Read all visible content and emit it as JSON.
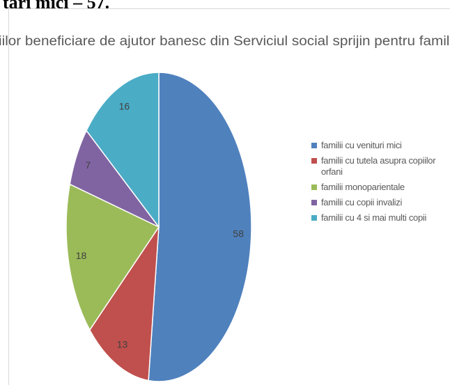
{
  "heading": "tari mici – 57.",
  "chart_data": {
    "type": "pie",
    "title": "iilor beneficiare de ajutor banesc din Serviciul social sprijin pentru famili",
    "categories": [
      "familii cu venituri mici",
      "familii cu tutela asupra copiilor orfani",
      "familii monoparientale",
      "familii cu copii invalizi",
      "familii cu 4 si mai multi copii"
    ],
    "values": [
      58,
      13,
      18,
      7,
      16
    ],
    "colors": [
      "#4f81bd",
      "#c0504d",
      "#9bbb59",
      "#8064a2",
      "#4bacc6"
    ],
    "legend": "right"
  }
}
